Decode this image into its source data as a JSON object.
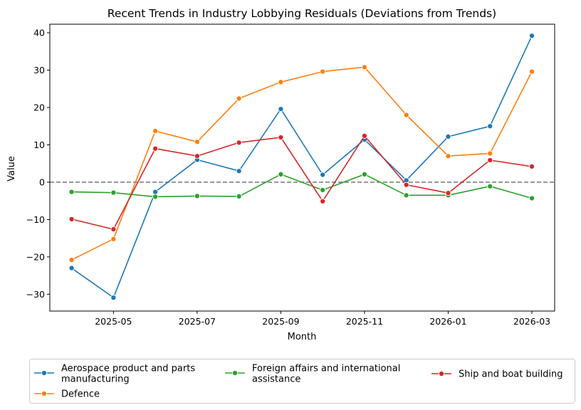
{
  "chart_data": {
    "type": "line",
    "title": "Recent Trends in Industry Lobbying Residuals (Deviations from Trends)",
    "xlabel": "Month",
    "ylabel": "Value",
    "x": [
      "2025-04",
      "2025-05",
      "2025-06",
      "2025-07",
      "2025-08",
      "2025-09",
      "2025-10",
      "2025-11",
      "2025-12",
      "2026-01",
      "2026-02",
      "2026-03"
    ],
    "x_tick_labels": [
      "2025-05",
      "2025-07",
      "2025-09",
      "2025-11",
      "2026-01",
      "2026-03"
    ],
    "y_ticks": [
      -30,
      -20,
      -10,
      0,
      10,
      20,
      30,
      40
    ],
    "y_tick_labels": [
      "−30",
      "−20",
      "−10",
      "0",
      "10",
      "20",
      "30",
      "40"
    ],
    "ylim": [
      -34.5,
      42.3
    ],
    "reference_line": {
      "y": 0,
      "style": "dashed",
      "color": "#808080"
    },
    "grid": false,
    "legend_position": "bottom",
    "series": [
      {
        "name": "Aerospace product and parts manufacturing",
        "legend_lines": [
          "Aerospace product and parts",
          "manufacturing"
        ],
        "color": "#1f77b4",
        "values": [
          -23.0,
          -30.9,
          -2.6,
          6.0,
          3.0,
          19.6,
          2.0,
          11.4,
          0.5,
          12.2,
          15.0,
          39.2
        ]
      },
      {
        "name": "Defence",
        "legend_lines": [
          "Defence"
        ],
        "color": "#ff7f0e",
        "values": [
          -20.8,
          -15.2,
          13.7,
          10.8,
          22.4,
          26.8,
          29.6,
          30.8,
          18.0,
          7.0,
          7.7,
          29.6
        ]
      },
      {
        "name": "Foreign affairs and international assistance",
        "legend_lines": [
          "Foreign affairs and international",
          "assistance"
        ],
        "color": "#2ca02c",
        "values": [
          -2.6,
          -2.8,
          -3.9,
          -3.7,
          -3.8,
          2.1,
          -2.1,
          2.1,
          -3.5,
          -3.5,
          -1.1,
          -4.3
        ]
      },
      {
        "name": "Ship and boat building",
        "legend_lines": [
          "Ship and boat building"
        ],
        "color": "#d62728",
        "values": [
          -9.9,
          -12.6,
          9.0,
          7.0,
          10.6,
          12.0,
          -5.1,
          12.4,
          -0.7,
          -2.9,
          5.9,
          4.2
        ]
      }
    ]
  }
}
